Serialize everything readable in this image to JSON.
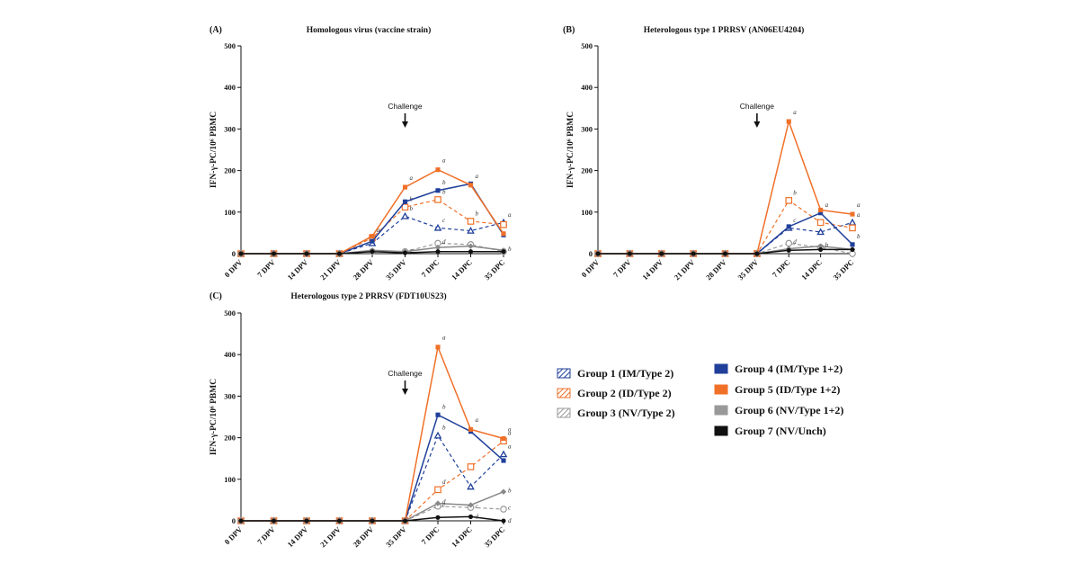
{
  "chart_data": [
    {
      "type": "line",
      "panel": "(A)",
      "title": "Homologous virus (vaccine strain)",
      "ylabel": "IFN-γ-PC/10⁶ PBMC",
      "ylim": [
        0,
        500
      ],
      "yticks": [
        0,
        100,
        200,
        300,
        400,
        500
      ],
      "categories": [
        "0 DPV",
        "7 DPV",
        "14 DPV",
        "21 DPV",
        "28 DPV",
        "35 DPV",
        "7 DPC",
        "14 DPC",
        "35 DPC"
      ],
      "annotation": "Challenge",
      "annotation_at": "35 DPV",
      "series": [
        {
          "name": "Group 1 (IM/Type 2)",
          "values": [
            0,
            0,
            0,
            0,
            25,
            90,
            62,
            55,
            75
          ],
          "letters": [
            "",
            "",
            "",
            "",
            "",
            "b",
            "c",
            "",
            "a"
          ]
        },
        {
          "name": "Group 2 (ID/Type 2)",
          "values": [
            0,
            0,
            0,
            0,
            38,
            112,
            130,
            78,
            70
          ],
          "letters": [
            "",
            "",
            "",
            "",
            "a",
            "b",
            "b",
            "b",
            ""
          ]
        },
        {
          "name": "Group 3 (NV/Type 2)",
          "values": [
            0,
            0,
            0,
            0,
            5,
            5,
            25,
            22,
            5
          ],
          "letters": [
            "",
            "",
            "",
            "",
            "",
            "c",
            "d",
            "",
            ""
          ]
        },
        {
          "name": "Group 4 (IM/Type 1+2)",
          "values": [
            0,
            0,
            0,
            0,
            30,
            125,
            152,
            168,
            45
          ],
          "letters": [
            "",
            "",
            "",
            "",
            "",
            "",
            "b",
            "a",
            ""
          ]
        },
        {
          "name": "Group 5 (ID/Type 1+2)",
          "values": [
            0,
            0,
            0,
            0,
            42,
            160,
            202,
            165,
            48
          ],
          "letters": [
            "",
            "",
            "",
            "",
            "",
            "a",
            "a",
            "",
            ""
          ]
        },
        {
          "name": "Group 6 (NV/Type 1+2)",
          "values": [
            0,
            0,
            0,
            0,
            8,
            5,
            15,
            18,
            8
          ],
          "letters": [
            "",
            "",
            "",
            "",
            "",
            "",
            "",
            "",
            "b"
          ]
        },
        {
          "name": "Group 7 (NV/Unch)",
          "values": [
            0,
            0,
            0,
            0,
            5,
            2,
            5,
            5,
            5
          ],
          "letters": [
            "",
            "",
            "",
            "",
            "",
            "",
            "",
            "",
            ""
          ]
        }
      ]
    },
    {
      "type": "line",
      "panel": "(B)",
      "title": "Heterologous type 1 PRRSV (AN06EU4204)",
      "ylabel": "IFN-γ-PC/10⁶ PBMC",
      "ylim": [
        0,
        500
      ],
      "yticks": [
        0,
        100,
        200,
        300,
        400,
        500
      ],
      "categories": [
        "0 DPV",
        "7 DPV",
        "14 DPV",
        "21 DPV",
        "28 DPV",
        "35 DPV",
        "7 DPC",
        "14 DPC",
        "35 DPC"
      ],
      "annotation": "Challenge",
      "annotation_at": "35 DPV",
      "series": [
        {
          "name": "Group 1 (IM/Type 2)",
          "values": [
            0,
            0,
            0,
            0,
            0,
            0,
            62,
            52,
            75
          ],
          "letters": [
            "",
            "",
            "",
            "",
            "",
            "",
            "c",
            "",
            "a"
          ]
        },
        {
          "name": "Group 2 (ID/Type 2)",
          "values": [
            0,
            0,
            0,
            0,
            0,
            0,
            128,
            75,
            62
          ],
          "letters": [
            "",
            "",
            "",
            "",
            "",
            "",
            "b",
            "",
            ""
          ]
        },
        {
          "name": "Group 3 (NV/Type 2)",
          "values": [
            0,
            0,
            0,
            0,
            0,
            0,
            25,
            15,
            0
          ],
          "letters": [
            "",
            "",
            "",
            "",
            "",
            "",
            "d",
            "",
            ""
          ]
        },
        {
          "name": "Group 4 (IM/Type 1+2)",
          "values": [
            0,
            0,
            0,
            0,
            0,
            0,
            65,
            98,
            22
          ],
          "letters": [
            "",
            "",
            "",
            "",
            "",
            "",
            "",
            "a",
            "b"
          ]
        },
        {
          "name": "Group 5 (ID/Type 1+2)",
          "values": [
            0,
            0,
            0,
            0,
            0,
            0,
            318,
            105,
            95
          ],
          "letters": [
            "",
            "",
            "",
            "",
            "",
            "",
            "a",
            "",
            "a"
          ]
        },
        {
          "name": "Group 6 (NV/Type 1+2)",
          "values": [
            0,
            0,
            0,
            0,
            0,
            0,
            12,
            18,
            10
          ],
          "letters": [
            "",
            "",
            "",
            "",
            "",
            "",
            "",
            "b",
            ""
          ]
        },
        {
          "name": "Group 7 (NV/Unch)",
          "values": [
            0,
            0,
            0,
            0,
            0,
            0,
            8,
            10,
            10
          ],
          "letters": [
            "",
            "",
            "",
            "",
            "",
            "",
            "",
            "",
            ""
          ]
        }
      ]
    },
    {
      "type": "line",
      "panel": "(C)",
      "title": "Heterologous type 2 PRRSV (FDT10US23)",
      "ylabel": "IFN-γ-PC/10⁶ PBMC",
      "ylim": [
        0,
        500
      ],
      "yticks": [
        0,
        100,
        200,
        300,
        400,
        500
      ],
      "categories": [
        "0 DPV",
        "7 DPV",
        "14 DPV",
        "21 DPV",
        "28 DPV",
        "35 DPV",
        "7 DPC",
        "14 DPC",
        "35 DPC"
      ],
      "annotation": "Challenge",
      "annotation_at": "35 DPV",
      "series": [
        {
          "name": "Group 1 (IM/Type 2)",
          "values": [
            0,
            0,
            0,
            0,
            0,
            0,
            205,
            82,
            160
          ],
          "letters": [
            "",
            "",
            "",
            "",
            "",
            "",
            "b",
            "",
            "a"
          ]
        },
        {
          "name": "Group 2 (ID/Type 2)",
          "values": [
            0,
            0,
            0,
            0,
            0,
            0,
            75,
            130,
            192
          ],
          "letters": [
            "",
            "",
            "",
            "",
            "",
            "",
            "d",
            "",
            "a"
          ]
        },
        {
          "name": "Group 3 (NV/Type 2)",
          "values": [
            0,
            0,
            0,
            0,
            0,
            0,
            35,
            32,
            28
          ],
          "letters": [
            "",
            "",
            "",
            "",
            "",
            "",
            "e",
            "c",
            "c"
          ]
        },
        {
          "name": "Group 4 (IM/Type 1+2)",
          "values": [
            0,
            0,
            0,
            0,
            0,
            0,
            255,
            215,
            145
          ],
          "letters": [
            "",
            "",
            "",
            "",
            "",
            "",
            "b",
            "",
            ""
          ]
        },
        {
          "name": "Group 5 (ID/Type 1+2)",
          "values": [
            0,
            0,
            0,
            0,
            0,
            0,
            418,
            220,
            198
          ],
          "letters": [
            "",
            "",
            "",
            "",
            "",
            "",
            "a",
            "a",
            "a"
          ]
        },
        {
          "name": "Group 6 (NV/Type 1+2)",
          "values": [
            0,
            0,
            0,
            0,
            0,
            0,
            42,
            38,
            70
          ],
          "letters": [
            "",
            "",
            "",
            "",
            "",
            "",
            "d",
            "",
            "b"
          ]
        },
        {
          "name": "Group 7 (NV/Unch)",
          "values": [
            0,
            0,
            0,
            0,
            0,
            0,
            8,
            10,
            0
          ],
          "letters": [
            "",
            "",
            "",
            "",
            "",
            "",
            "",
            "d",
            "d"
          ]
        }
      ]
    }
  ],
  "styles": [
    {
      "color": "#1f3f9a",
      "dash": true,
      "marker": "triangle-open"
    },
    {
      "color": "#f07028",
      "dash": true,
      "marker": "square-open"
    },
    {
      "color": "#999999",
      "dash": true,
      "marker": "circle-open"
    },
    {
      "color": "#1f3f9a",
      "dash": false,
      "marker": "square-filled"
    },
    {
      "color": "#f07028",
      "dash": false,
      "marker": "square-filled"
    },
    {
      "color": "#888888",
      "dash": false,
      "marker": "diamond-filled"
    },
    {
      "color": "#111111",
      "dash": false,
      "marker": "circle-filled"
    }
  ],
  "legend": [
    {
      "label": "Group 1 (IM/Type 2)",
      "color": "#1f3f9a",
      "swatch": "hatched"
    },
    {
      "label": "Group 2 (ID/Type 2)",
      "color": "#f07028",
      "swatch": "hatched"
    },
    {
      "label": "Group 3 (NV/Type 2)",
      "color": "#999999",
      "swatch": "hatched"
    },
    {
      "label": "Group 4 (IM/Type 1+2)",
      "color": "#1f3f9a",
      "swatch": "solid"
    },
    {
      "label": "Group 5 (ID/Type 1+2)",
      "color": "#f07028",
      "swatch": "solid"
    },
    {
      "label": "Group 6 (NV/Type 1+2)",
      "color": "#999999",
      "swatch": "solid"
    },
    {
      "label": "Group 7 (NV/Unch)",
      "color": "#111111",
      "swatch": "solid"
    }
  ]
}
